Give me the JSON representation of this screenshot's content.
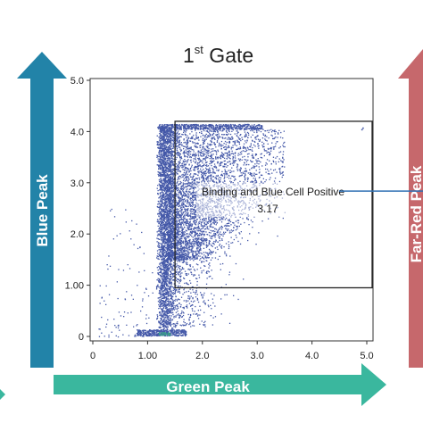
{
  "chart_data": {
    "type": "scatter",
    "title_main": "1",
    "title_sup": "st",
    "title_rest": " Gate",
    "xlabel": "Green Peak",
    "ylabel": "Blue Peak",
    "right_label": "Far-Red Peak",
    "xlim": [
      0,
      5.0
    ],
    "ylim": [
      0,
      5.0
    ],
    "x_ticks": [
      {
        "value": 0,
        "label": "0"
      },
      {
        "value": 1.0,
        "label": "1.00"
      },
      {
        "value": 2.0,
        "label": "2.0"
      },
      {
        "value": 3.0,
        "label": "3.0"
      },
      {
        "value": 4.0,
        "label": "4.0"
      },
      {
        "value": 5.0,
        "label": "5.0"
      }
    ],
    "y_ticks": [
      {
        "value": 0,
        "label": "0"
      },
      {
        "value": 1.0,
        "label": "1.00"
      },
      {
        "value": 2.0,
        "label": "2.0"
      },
      {
        "value": 3.0,
        "label": "3.0"
      },
      {
        "value": 4.0,
        "label": "4.0"
      },
      {
        "value": 5.0,
        "label": "5.0"
      }
    ],
    "gate": {
      "name": "Binding and Blue Cell Positive",
      "value": "3.17",
      "x_range": [
        1.5,
        5.0
      ],
      "y_range": [
        0.95,
        4.2
      ]
    },
    "point_color": "#4458a8",
    "event_color": "#3a9a8a",
    "grid": false
  },
  "colors": {
    "blue_arrow": "#2283a8",
    "green_arrow": "#3ab79e",
    "red_arrow": "#c6686c"
  }
}
